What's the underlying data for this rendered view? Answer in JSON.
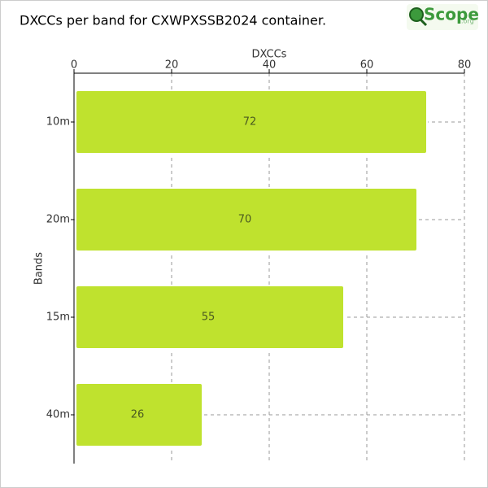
{
  "logo": {
    "text": "Scope",
    "suffix": ".org"
  },
  "chart_data": {
    "type": "bar",
    "orientation": "horizontal",
    "title": "DXCCs per band for CXWPXSSB2024 container.",
    "x_label": "DXCCs",
    "y_label": "Bands",
    "categories": [
      "10m",
      "20m",
      "15m",
      "40m"
    ],
    "values": [
      72,
      70,
      55,
      26
    ],
    "color": "#bfe22e",
    "xlim": [
      0,
      80
    ],
    "xticks": [
      0,
      20,
      40,
      60,
      80
    ],
    "grid": true
  }
}
